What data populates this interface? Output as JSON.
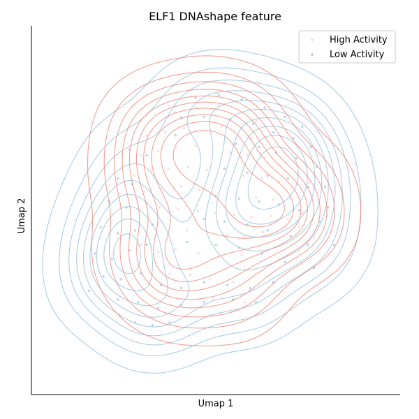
{
  "chart_data": {
    "type": "scatter",
    "title": "ELF1 DNAshape feature",
    "xlabel": "Umap 1",
    "ylabel": "Umap 2",
    "xlim": [
      -3.2,
      3.2
    ],
    "ylim": [
      -3.2,
      3.2
    ],
    "x_ticks_shown": false,
    "y_ticks_shown": false,
    "grid": false,
    "legend_position": "top-right",
    "overlay": "kernel density contours per series",
    "series": [
      {
        "name": "High Activity",
        "color": "#f4a582",
        "point_color": "#fbd5d8",
        "contour_color": "#ee8f84",
        "density_centers": [
          [
            -0.15,
            1.2
          ],
          [
            1.15,
            0.15
          ],
          [
            -0.9,
            -0.75
          ]
        ],
        "points": [
          [
            -1.05,
            1.65
          ],
          [
            -0.72,
            1.7
          ],
          [
            -0.35,
            1.78
          ],
          [
            0.05,
            1.82
          ],
          [
            0.42,
            1.7
          ],
          [
            0.7,
            1.55
          ],
          [
            -1.2,
            1.3
          ],
          [
            -0.88,
            1.35
          ],
          [
            -0.55,
            1.42
          ],
          [
            -0.2,
            1.38
          ],
          [
            0.1,
            1.45
          ],
          [
            0.38,
            1.32
          ],
          [
            0.62,
            1.25
          ],
          [
            -1.3,
            0.95
          ],
          [
            -1.0,
            1.02
          ],
          [
            -0.7,
            1.08
          ],
          [
            -0.35,
            1.12
          ],
          [
            -0.05,
            1.05
          ],
          [
            0.25,
            1.0
          ],
          [
            0.55,
            0.95
          ],
          [
            0.85,
            0.9
          ],
          [
            -1.42,
            0.6
          ],
          [
            -1.12,
            0.68
          ],
          [
            -0.82,
            0.72
          ],
          [
            -0.48,
            0.75
          ],
          [
            -0.15,
            0.7
          ],
          [
            0.18,
            0.65
          ],
          [
            0.48,
            0.6
          ],
          [
            0.8,
            0.55
          ],
          [
            1.1,
            0.5
          ],
          [
            -1.25,
            0.32
          ],
          [
            -0.92,
            0.38
          ],
          [
            -0.6,
            0.42
          ],
          [
            -0.28,
            0.35
          ],
          [
            0.05,
            0.3
          ],
          [
            0.35,
            0.25
          ],
          [
            0.7,
            0.22
          ],
          [
            1.0,
            0.18
          ],
          [
            1.3,
            0.2
          ],
          [
            -0.98,
            0.05
          ],
          [
            -0.65,
            0.02
          ],
          [
            -0.32,
            -0.02
          ],
          [
            0.0,
            -0.05
          ],
          [
            0.32,
            -0.08
          ],
          [
            0.62,
            -0.12
          ],
          [
            0.95,
            -0.1
          ],
          [
            1.25,
            -0.15
          ],
          [
            1.5,
            -0.05
          ],
          [
            -0.5,
            -0.35
          ],
          [
            -0.15,
            -0.4
          ],
          [
            0.2,
            -0.42
          ],
          [
            0.5,
            -0.45
          ],
          [
            0.82,
            -0.38
          ],
          [
            1.15,
            -0.32
          ],
          [
            1.45,
            -0.28
          ],
          [
            -1.3,
            -0.6
          ],
          [
            -1.0,
            -0.72
          ],
          [
            -0.7,
            -0.68
          ],
          [
            -0.3,
            -0.75
          ],
          [
            0.1,
            -0.8
          ],
          [
            0.45,
            -0.78
          ],
          [
            0.8,
            -0.7
          ],
          [
            -1.1,
            -1.05
          ],
          [
            -0.8,
            -1.1
          ],
          [
            -0.45,
            -1.12
          ],
          [
            -0.1,
            -1.2
          ],
          [
            0.3,
            -1.25
          ],
          [
            0.7,
            -1.1
          ],
          [
            -0.9,
            -1.45
          ],
          [
            -0.5,
            -1.5
          ],
          [
            -0.05,
            -1.55
          ],
          [
            0.5,
            -1.6
          ],
          [
            -1.35,
            1.52
          ],
          [
            1.62,
            0.48
          ],
          [
            1.7,
            -0.45
          ]
        ]
      },
      {
        "name": "Low Activity",
        "color": "#92c5de",
        "point_color": "#a9cce6",
        "contour_color": "#9fc3dc",
        "density_centers": [
          [
            0.55,
            0.15
          ],
          [
            -1.55,
            -0.75
          ],
          [
            1.2,
            0.7
          ]
        ],
        "points": [
          [
            -0.35,
            1.95
          ],
          [
            0.05,
            2.0
          ],
          [
            0.45,
            1.92
          ],
          [
            0.85,
            1.78
          ],
          [
            1.2,
            1.62
          ],
          [
            1.5,
            1.45
          ],
          [
            -0.6,
            1.6
          ],
          [
            -0.2,
            1.62
          ],
          [
            0.25,
            1.58
          ],
          [
            0.65,
            1.5
          ],
          [
            1.0,
            1.35
          ],
          [
            1.35,
            1.25
          ],
          [
            1.65,
            1.1
          ],
          [
            -1.5,
            1.05
          ],
          [
            -1.2,
            0.95
          ],
          [
            0.35,
            1.15
          ],
          [
            0.75,
            1.1
          ],
          [
            1.05,
            1.0
          ],
          [
            1.4,
            0.9
          ],
          [
            1.75,
            0.75
          ],
          [
            1.9,
            0.4
          ],
          [
            -1.7,
            0.55
          ],
          [
            -1.45,
            0.45
          ],
          [
            0.15,
            0.72
          ],
          [
            0.55,
            0.65
          ],
          [
            0.9,
            0.6
          ],
          [
            1.25,
            0.55
          ],
          [
            1.6,
            0.4
          ],
          [
            1.95,
            0.05
          ],
          [
            -1.85,
            0.15
          ],
          [
            -1.55,
            0.05
          ],
          [
            -1.2,
            0.12
          ],
          [
            0.0,
            0.25
          ],
          [
            0.4,
            0.2
          ],
          [
            0.75,
            0.15
          ],
          [
            1.1,
            0.1
          ],
          [
            1.45,
            0.0
          ],
          [
            1.8,
            -0.2
          ],
          [
            -2.0,
            -0.3
          ],
          [
            -1.7,
            -0.4
          ],
          [
            -1.4,
            -0.35
          ],
          [
            -1.1,
            -0.25
          ],
          [
            -0.2,
            -0.15
          ],
          [
            0.15,
            -0.2
          ],
          [
            0.55,
            -0.25
          ],
          [
            0.9,
            -0.35
          ],
          [
            1.3,
            -0.45
          ],
          [
            1.6,
            -0.6
          ],
          [
            -2.1,
            -0.75
          ],
          [
            -1.8,
            -0.85
          ],
          [
            -1.5,
            -0.7
          ],
          [
            -1.2,
            -0.6
          ],
          [
            -0.5,
            -0.55
          ],
          [
            0.0,
            -0.6
          ],
          [
            0.4,
            -0.65
          ],
          [
            0.8,
            -0.75
          ],
          [
            1.2,
            -0.9
          ],
          [
            -1.95,
            -1.15
          ],
          [
            -1.65,
            -1.2
          ],
          [
            -1.3,
            -1.1
          ],
          [
            -0.95,
            -1.3
          ],
          [
            -0.6,
            -1.35
          ],
          [
            -0.2,
            -1.25
          ],
          [
            0.2,
            -1.3
          ],
          [
            0.6,
            -1.35
          ],
          [
            1.0,
            -1.25
          ],
          [
            -1.7,
            -1.55
          ],
          [
            -1.35,
            -1.6
          ],
          [
            -1.0,
            -1.7
          ],
          [
            -0.6,
            -1.65
          ],
          [
            -0.2,
            -1.6
          ],
          [
            0.3,
            -1.55
          ],
          [
            0.7,
            -1.6
          ],
          [
            -1.4,
            -1.95
          ],
          [
            -1.1,
            -2.0
          ],
          [
            -0.8,
            -1.95
          ],
          [
            -2.2,
            -1.4
          ],
          [
            2.05,
            -0.6
          ],
          [
            1.7,
            -1.0
          ],
          [
            -0.7,
            1.3
          ]
        ]
      }
    ]
  }
}
